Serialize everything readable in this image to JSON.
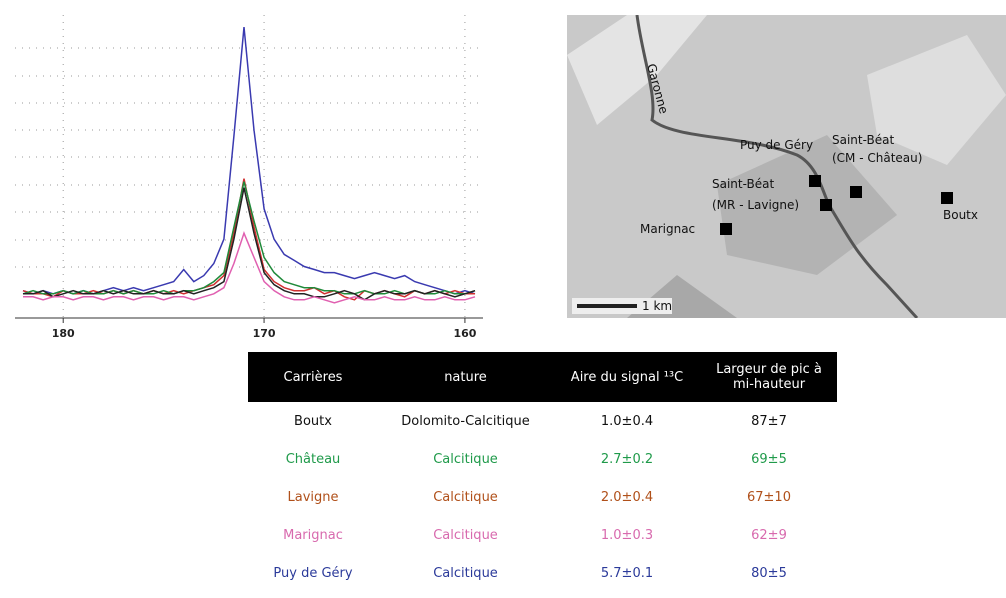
{
  "chart_data": {
    "type": "line",
    "x": [
      182,
      181.5,
      181,
      180.5,
      180,
      179.5,
      179,
      178.5,
      178,
      177.5,
      177,
      176.5,
      176,
      175.5,
      175,
      174.5,
      174,
      173.5,
      173,
      172.5,
      172,
      171.5,
      171,
      170.5,
      170,
      169.5,
      169,
      168.5,
      168,
      167.5,
      167,
      166.5,
      166,
      165.5,
      165,
      164.5,
      164,
      163.5,
      163,
      162.5,
      162,
      161.5,
      161,
      160.5,
      160,
      159.5
    ],
    "xlim": [
      182.4,
      159.1
    ],
    "xticks": [
      180,
      170,
      160
    ],
    "ylim": [
      0,
      100
    ],
    "series": [
      {
        "color": "#3a3ab0",
        "values": [
          9,
          8,
          9,
          8,
          9,
          8,
          9,
          8,
          9,
          10,
          9,
          10,
          9,
          10,
          11,
          12,
          16,
          12,
          14,
          18,
          26,
          60,
          96,
          62,
          36,
          26,
          21,
          19,
          17,
          16,
          15,
          15,
          14,
          13,
          14,
          15,
          14,
          13,
          14,
          12,
          11,
          10,
          9,
          8,
          9,
          8
        ]
      },
      {
        "color": "#d03030",
        "values": [
          9,
          8,
          8,
          7,
          9,
          8,
          8,
          9,
          8,
          9,
          8,
          9,
          8,
          9,
          8,
          9,
          8,
          9,
          10,
          11,
          14,
          28,
          46,
          30,
          16,
          12,
          10,
          9,
          9,
          10,
          8,
          9,
          7,
          6,
          9,
          8,
          9,
          8,
          7,
          9,
          8,
          9,
          8,
          9,
          8,
          8
        ]
      },
      {
        "color": "#1f8a3a",
        "values": [
          8,
          9,
          8,
          8,
          9,
          8,
          9,
          8,
          8,
          9,
          8,
          9,
          8,
          8,
          9,
          8,
          9,
          9,
          10,
          12,
          15,
          30,
          45,
          32,
          20,
          15,
          12,
          11,
          10,
          10,
          9,
          9,
          8,
          8,
          9,
          8,
          8,
          9,
          8,
          9,
          8,
          8,
          9,
          8,
          8,
          9
        ]
      },
      {
        "color": "#222222",
        "values": [
          8,
          8,
          9,
          7,
          8,
          9,
          8,
          8,
          9,
          8,
          9,
          8,
          8,
          9,
          8,
          8,
          9,
          8,
          9,
          10,
          12,
          26,
          43,
          28,
          15,
          11,
          9,
          8,
          8,
          7,
          7,
          8,
          9,
          8,
          6,
          8,
          9,
          8,
          8,
          9,
          8,
          9,
          8,
          7,
          8,
          9
        ]
      },
      {
        "color": "#e060b0",
        "values": [
          7,
          7,
          6,
          7,
          7,
          6,
          7,
          7,
          6,
          7,
          7,
          6,
          7,
          7,
          6,
          7,
          7,
          6,
          7,
          8,
          10,
          18,
          28,
          20,
          12,
          9,
          7,
          6,
          6,
          7,
          6,
          5,
          6,
          7,
          6,
          6,
          7,
          6,
          6,
          7,
          6,
          6,
          7,
          6,
          6,
          7
        ]
      }
    ]
  },
  "map": {
    "river": "Garonne",
    "puy": "Puy de Géry",
    "chateau": [
      "Saint-Béat",
      "(CM - Château)"
    ],
    "lavigne": [
      "Saint-Béat",
      "(MR - Lavigne)"
    ],
    "marignac": "Marignac",
    "boutx": "Boutx",
    "scale": "1 km"
  },
  "table": {
    "header": [
      "Carrières",
      "nature",
      "Aire du signal ¹³C",
      "Largeur de pic à mi-hauteur"
    ],
    "rows": [
      {
        "color": "#111111",
        "cells": [
          "Boutx",
          "Dolomito-Calcitique",
          "1.0±0.4",
          "87±7"
        ]
      },
      {
        "color": "#1f9a4a",
        "cells": [
          "Château",
          "Calcitique",
          "2.7±0.2",
          "69±5"
        ]
      },
      {
        "color": "#b0501a",
        "cells": [
          "Lavigne",
          "Calcitique",
          "2.0±0.4",
          "67±10"
        ]
      },
      {
        "color": "#d86aae",
        "cells": [
          "Marignac",
          "Calcitique",
          "1.0±0.3",
          "62±9"
        ]
      },
      {
        "color": "#2b3a9a",
        "cells": [
          "Puy de Géry",
          "Calcitique",
          "5.7±0.1",
          "80±5"
        ]
      }
    ]
  }
}
